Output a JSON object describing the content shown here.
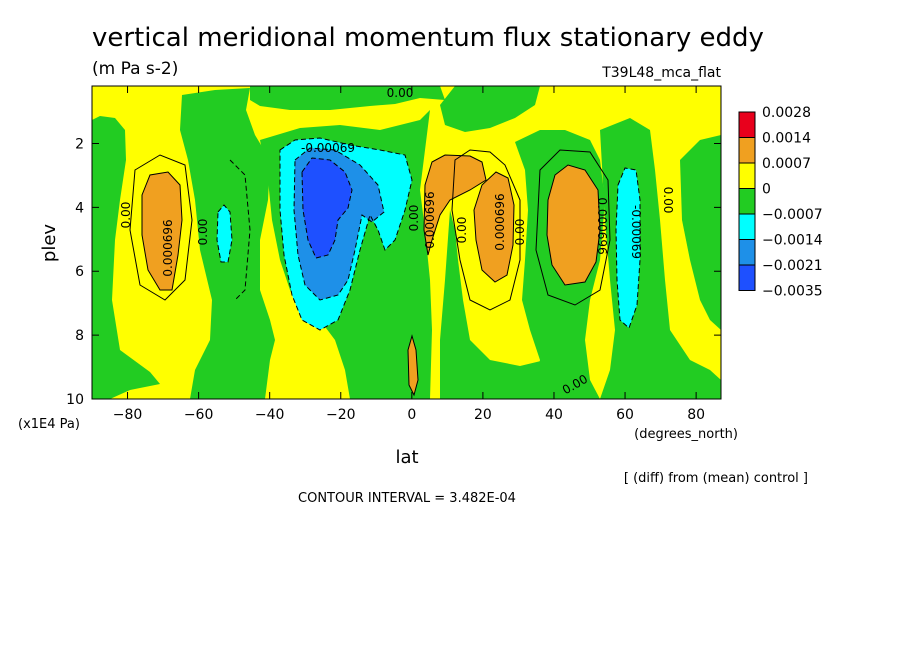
{
  "chart_data": {
    "type": "heatmap",
    "title": "vertical meridional momentum flux stationary eddy",
    "units": "(m Pa s-2)",
    "run_label": "T39L48_mca_flat",
    "xlabel": "lat",
    "x_units": "(degrees_north)",
    "ylabel": "plev",
    "y_units": "(x1E4 Pa)",
    "diff_note": "[ (diff) from (mean) control ]",
    "contour_interval_text": "CONTOUR INTERVAL = 3.482E-04",
    "xlim": [
      -90,
      87
    ],
    "ylim": [
      10,
      0.2
    ],
    "x_ticks": [
      -80,
      -60,
      -40,
      -20,
      0,
      20,
      40,
      60,
      80
    ],
    "x_tick_labels": [
      "−80",
      "−60",
      "−40",
      "−20",
      "0",
      "20",
      "40",
      "60",
      "80"
    ],
    "y_ticks": [
      2,
      4,
      6,
      8,
      10
    ],
    "y_tick_labels": [
      "2",
      "4",
      "6",
      "8",
      "10"
    ],
    "colorbar": {
      "labels": [
        "0.0028",
        "0.0014",
        "0.0007",
        "0",
        "−0.0007",
        "−0.0014",
        "−0.0021",
        "−0.0035"
      ],
      "colors": [
        "#e8001c",
        "#f0a020",
        "#ffff00",
        "#22cc22",
        "#00ffff",
        "#1e90e8",
        "#1e50ff"
      ]
    },
    "features": [
      {
        "lat": -68,
        "plev": 4.5,
        "value": 0.0009,
        "level": "orange"
      },
      {
        "lat": -27,
        "plev": 4.0,
        "value": -0.0031,
        "level": "darkblue"
      },
      {
        "lat": -22,
        "plev": 4.8,
        "value": -0.0017,
        "level": "blue"
      },
      {
        "lat": -11,
        "plev": 4.5,
        "value": -0.0009,
        "level": "cyan"
      },
      {
        "lat": 5,
        "plev": 4.2,
        "value": 0.0012,
        "level": "orange"
      },
      {
        "lat": 17,
        "plev": 4.3,
        "value": 0.001,
        "level": "orange"
      },
      {
        "lat": 50,
        "plev": 5.0,
        "value": 0.001,
        "level": "orange"
      },
      {
        "lat": 62,
        "plev": 5.0,
        "value": -0.0009,
        "level": "cyan"
      },
      {
        "lat": -51,
        "plev": 5.2,
        "value": -0.0008,
        "level": "cyan"
      },
      {
        "lat": 3,
        "plev": 9.0,
        "value": 0.001,
        "level": "orange"
      }
    ],
    "contour_labels": [
      "0.00",
      "-0.00069",
      "0.00",
      "0.000696",
      "0.00",
      "0.00",
      "0.000696",
      "0.000696",
      "0.00",
      "0.00",
      "0.000696",
      "-0.00069",
      "0.00",
      "0.00"
    ]
  }
}
